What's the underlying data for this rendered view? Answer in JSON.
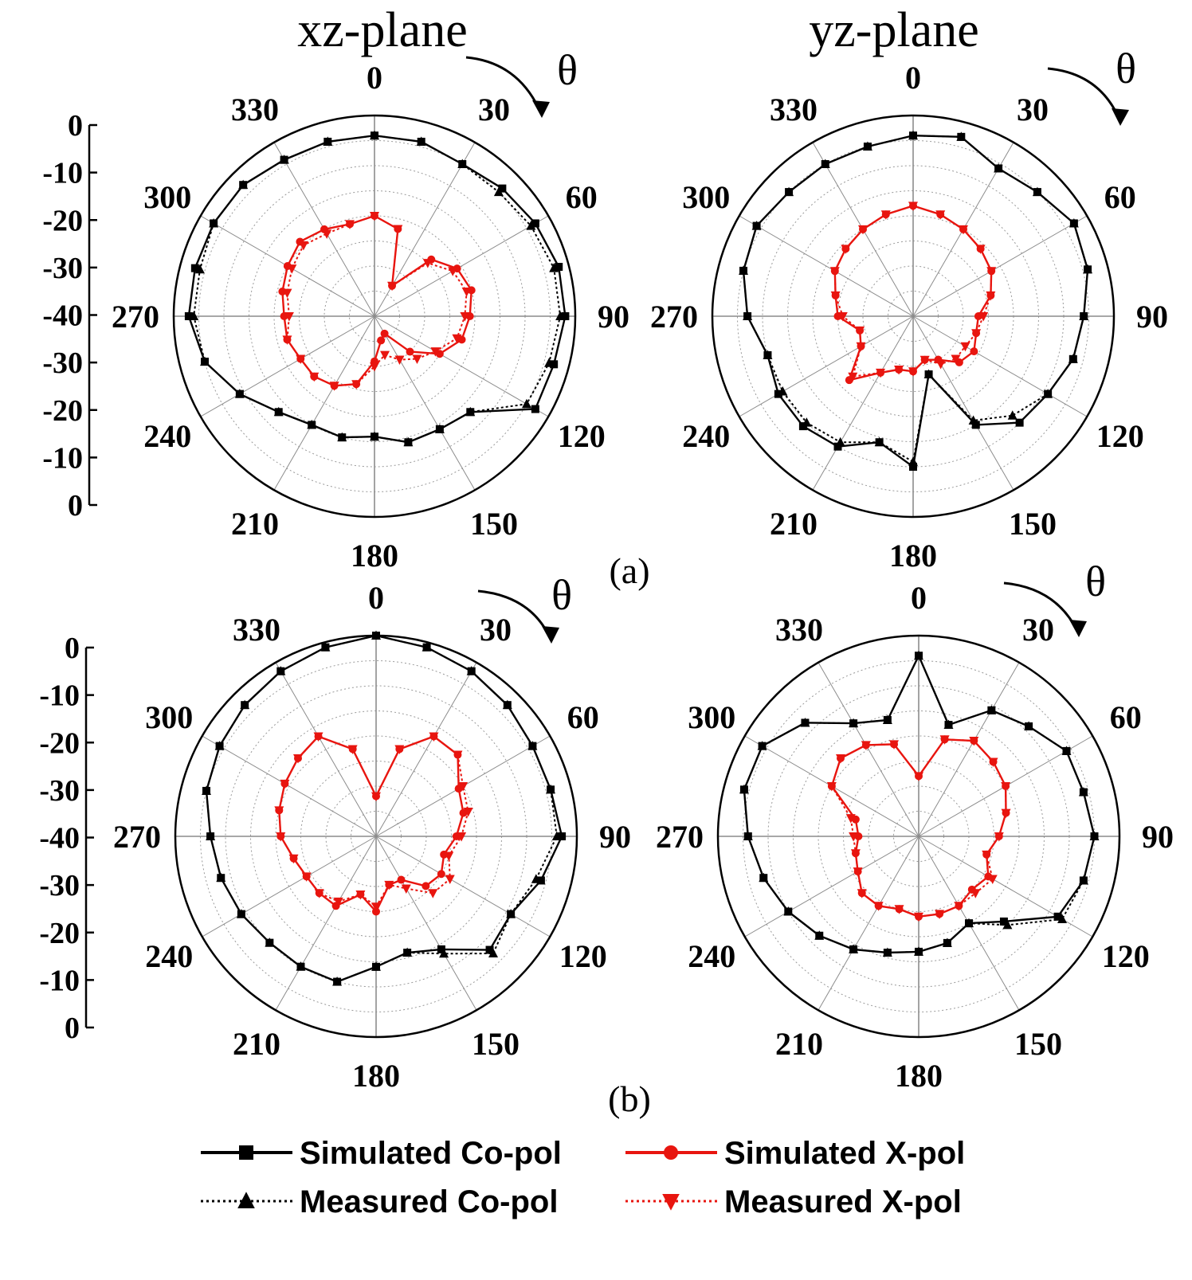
{
  "figure": {
    "labels": {
      "xz_plane": "xz-plane",
      "yz_plane": "yz-plane",
      "theta": "θ",
      "a": "(a)",
      "b": "(b)"
    },
    "legend": [
      {
        "label": "Simulated Co-pol",
        "color": "#000000",
        "dash": "solid",
        "marker": "square"
      },
      {
        "label": "Simulated X-pol",
        "color": "#e8150f",
        "dash": "solid",
        "marker": "circle"
      },
      {
        "label": "Measured Co-pol",
        "color": "#000000",
        "dash": "dotted",
        "marker": "triangle-up"
      },
      {
        "label": "Measured X-pol",
        "color": "#e8150f",
        "dash": "dotted",
        "marker": "triangle-down"
      }
    ]
  },
  "chart_data": [
    {
      "type": "polar-line",
      "row": "a",
      "plane_label": "xz-plane",
      "angle_ticks": [
        "0",
        "30",
        "60",
        "90",
        "120",
        "150",
        "180",
        "210",
        "240",
        "270",
        "300",
        "330"
      ],
      "radial_ticks": [
        "0",
        "-10",
        "-20",
        "-30",
        "-40",
        "-30",
        "-20",
        "-10",
        "0"
      ],
      "rlim": [
        -40,
        0
      ],
      "grid": true,
      "series": [
        {
          "name": "Simulated Co-pol",
          "theta": [
            0,
            15,
            30,
            45,
            60,
            75,
            90,
            105,
            120,
            135,
            150,
            165,
            180,
            195,
            210,
            225,
            240,
            255,
            270,
            285,
            300,
            315,
            330,
            345
          ],
          "r": [
            -4,
            -4,
            -5,
            -4,
            -3,
            -2,
            -2,
            -3,
            -3,
            -13,
            -14,
            -14,
            -16,
            -15,
            -15,
            -13,
            -9,
            -5,
            -3,
            -3,
            -3,
            -3,
            -4,
            -4
          ]
        },
        {
          "name": "Measured Co-pol",
          "theta": [
            0,
            15,
            30,
            45,
            60,
            75,
            90,
            105,
            120,
            135,
            150,
            165,
            180,
            195,
            210,
            225,
            240,
            255,
            270,
            285,
            300,
            315,
            330,
            345
          ],
          "r": [
            -4,
            -4,
            -5,
            -5,
            -4,
            -3,
            -3,
            -4,
            -5,
            -13,
            -14,
            -14,
            -16,
            -15,
            -15,
            -13,
            -9,
            -5,
            -4,
            -4,
            -3,
            -3,
            -4,
            -4
          ]
        },
        {
          "name": "Simulated X-pol",
          "theta": [
            0,
            15,
            30,
            45,
            60,
            75,
            90,
            105,
            120,
            135,
            150,
            165,
            180,
            195,
            210,
            225,
            240,
            255,
            270,
            285,
            300,
            315,
            330,
            345
          ],
          "r": [
            -20,
            -22,
            -33,
            -24,
            -21,
            -20,
            -21,
            -22,
            -25,
            -30,
            -36,
            -35,
            -31,
            -26,
            -24,
            -23,
            -23,
            -22,
            -22,
            -21,
            -20,
            -19,
            -20,
            -21
          ]
        },
        {
          "name": "Measured X-pol",
          "theta": [
            0,
            15,
            30,
            45,
            60,
            75,
            90,
            105,
            120,
            135,
            150,
            165,
            180,
            195,
            210,
            225,
            240,
            255,
            270,
            285,
            300,
            315,
            330,
            345
          ],
          "r": [
            -20,
            -22,
            -33,
            -25,
            -22,
            -21,
            -22,
            -23,
            -26,
            -28,
            -30,
            -32,
            -30,
            -26,
            -24,
            -23,
            -23,
            -22,
            -23,
            -22,
            -21,
            -20,
            -21,
            -21
          ]
        }
      ]
    },
    {
      "type": "polar-line",
      "row": "a",
      "plane_label": "yz-plane",
      "angle_ticks": [
        "0",
        "30",
        "60",
        "90",
        "120",
        "150",
        "180",
        "210",
        "240",
        "270",
        "300",
        "330"
      ],
      "rlim": [
        -40,
        0
      ],
      "grid": true,
      "series": [
        {
          "name": "Simulated Co-pol",
          "theta": [
            0,
            15,
            30,
            45,
            60,
            75,
            90,
            105,
            120,
            135,
            150,
            165,
            180,
            195,
            210,
            225,
            240,
            255,
            270,
            285,
            300,
            315,
            330,
            345
          ],
          "r": [
            -4,
            -3,
            -6,
            -5,
            -3,
            -4,
            -6,
            -7,
            -9,
            -10,
            -15,
            -28,
            -10,
            -14,
            -10,
            -9,
            -9,
            -10,
            -7,
            -5,
            -4,
            -5,
            -5,
            -5
          ]
        },
        {
          "name": "Measured Co-pol",
          "theta": [
            0,
            15,
            30,
            45,
            60,
            75,
            90,
            105,
            120,
            135,
            150,
            165,
            180,
            195,
            210,
            225,
            240,
            255,
            270,
            285,
            300,
            315,
            330,
            345
          ],
          "r": [
            -4,
            -3,
            -6,
            -5,
            -3,
            -4,
            -6,
            -7,
            -9,
            -12,
            -16,
            -28,
            -11,
            -14,
            -11,
            -10,
            -10,
            -10,
            -7,
            -5,
            -4,
            -5,
            -5,
            -5
          ]
        },
        {
          "name": "Simulated X-pol",
          "theta": [
            0,
            15,
            30,
            45,
            60,
            75,
            90,
            105,
            120,
            135,
            150,
            165,
            180,
            195,
            210,
            225,
            240,
            255,
            270,
            285,
            300,
            315,
            330,
            345
          ],
          "r": [
            -18,
            -19,
            -20,
            -21,
            -22,
            -24,
            -27,
            -27,
            -26,
            -27,
            -30,
            -31,
            -29,
            -29,
            -27,
            -22,
            -28,
            -29,
            -25,
            -24,
            -22,
            -21,
            -20,
            -19
          ]
        },
        {
          "name": "Measured X-pol",
          "theta": [
            0,
            15,
            30,
            45,
            60,
            75,
            90,
            105,
            120,
            135,
            150,
            165,
            180,
            195,
            210,
            225,
            240,
            255,
            270,
            285,
            300,
            315,
            330,
            345
          ],
          "r": [
            -18,
            -19,
            -20,
            -21,
            -22,
            -24,
            -26,
            -27,
            -28,
            -28,
            -29,
            -31,
            -29,
            -29,
            -27,
            -23,
            -28,
            -29,
            -26,
            -24,
            -22,
            -21,
            -20,
            -19
          ]
        }
      ]
    },
    {
      "type": "polar-line",
      "row": "b",
      "plane_label": "",
      "angle_ticks": [
        "0",
        "30",
        "60",
        "90",
        "120",
        "150",
        "180",
        "210",
        "240",
        "270",
        "300",
        "330"
      ],
      "radial_ticks": [
        "0",
        "-10",
        "-20",
        "-30",
        "-40",
        "-30",
        "-20",
        "-10",
        "0"
      ],
      "rlim": [
        -40,
        0
      ],
      "grid": true,
      "series": [
        {
          "name": "Simulated Co-pol",
          "theta": [
            0,
            15,
            30,
            45,
            60,
            75,
            90,
            105,
            120,
            135,
            150,
            165,
            180,
            195,
            210,
            225,
            240,
            255,
            270,
            285,
            300,
            315,
            330,
            345
          ],
          "r": [
            0,
            -1,
            -2,
            -3,
            -4,
            -4,
            -3,
            -6,
            -9,
            -8,
            -14,
            -16,
            -14,
            -10,
            -10,
            -10,
            -9,
            -8,
            -7,
            -5,
            -4,
            -3,
            -2,
            -1
          ]
        },
        {
          "name": "Measured Co-pol",
          "theta": [
            0,
            15,
            30,
            45,
            60,
            75,
            90,
            105,
            120,
            135,
            150,
            165,
            180,
            195,
            210,
            225,
            240,
            255,
            270,
            285,
            300,
            315,
            330,
            345
          ],
          "r": [
            0,
            -1,
            -2,
            -3,
            -4,
            -4,
            -4,
            -7,
            -9,
            -7,
            -13,
            -16,
            -14,
            -10,
            -10,
            -10,
            -9,
            -8,
            -7,
            -5,
            -4,
            -3,
            -2,
            -1
          ]
        },
        {
          "name": "Simulated X-pol",
          "theta": [
            0,
            15,
            30,
            45,
            60,
            75,
            90,
            105,
            120,
            135,
            150,
            165,
            180,
            195,
            210,
            225,
            240,
            255,
            270,
            285,
            300,
            315,
            330,
            345
          ],
          "r": [
            -32,
            -22,
            -17,
            -17,
            -21,
            -22,
            -24,
            -26,
            -25,
            -26,
            -30,
            -30,
            -25,
            -28,
            -24,
            -24,
            -24,
            -23,
            -21,
            -20,
            -19,
            -18,
            -17,
            -22
          ]
        },
        {
          "name": "Measured X-pol",
          "theta": [
            0,
            15,
            30,
            45,
            60,
            75,
            90,
            105,
            120,
            135,
            150,
            165,
            180,
            195,
            210,
            225,
            240,
            255,
            270,
            285,
            300,
            315,
            330,
            345
          ],
          "r": [
            -32,
            -22,
            -17,
            -17,
            -20,
            -21,
            -23,
            -25,
            -23,
            -24,
            -28,
            -30,
            -26,
            -28,
            -25,
            -24,
            -24,
            -23,
            -21,
            -20,
            -19,
            -18,
            -17,
            -22
          ]
        }
      ]
    },
    {
      "type": "polar-line",
      "row": "b",
      "plane_label": "",
      "angle_ticks": [
        "0",
        "30",
        "60",
        "90",
        "120",
        "150",
        "180",
        "210",
        "240",
        "270",
        "300",
        "330"
      ],
      "rlim": [
        -40,
        0
      ],
      "grid": true,
      "series": [
        {
          "name": "Simulated Co-pol",
          "theta": [
            0,
            15,
            30,
            45,
            60,
            75,
            90,
            105,
            120,
            135,
            150,
            165,
            180,
            195,
            210,
            225,
            240,
            255,
            270,
            285,
            300,
            315,
            330,
            345
          ],
          "r": [
            -4,
            -17,
            -11,
            -9,
            -6,
            -6,
            -5,
            -6,
            -8,
            -16,
            -20,
            -18,
            -17,
            -16,
            -14,
            -12,
            -10,
            -8,
            -6,
            -4,
            -4,
            -8,
            -14,
            -16
          ]
        },
        {
          "name": "Measured Co-pol",
          "theta": [
            0,
            15,
            30,
            45,
            60,
            75,
            90,
            105,
            120,
            135,
            150,
            165,
            180,
            195,
            210,
            225,
            240,
            255,
            270,
            285,
            300,
            315,
            330,
            345
          ],
          "r": [
            -4,
            -17,
            -11,
            -9,
            -6,
            -6,
            -5,
            -6,
            -7,
            -15,
            -20,
            -18,
            -17,
            -16,
            -14,
            -12,
            -10,
            -8,
            -6,
            -4,
            -4,
            -8,
            -14,
            -16
          ]
        },
        {
          "name": "Simulated X-pol",
          "theta": [
            0,
            15,
            30,
            45,
            60,
            75,
            90,
            105,
            120,
            135,
            150,
            165,
            180,
            195,
            210,
            225,
            240,
            255,
            270,
            285,
            300,
            315,
            330,
            345
          ],
          "r": [
            -28,
            -20,
            -18,
            -19,
            -20,
            -22,
            -24,
            -26,
            -24,
            -25,
            -24,
            -24,
            -24,
            -25,
            -24,
            -24,
            -26,
            -27,
            -28,
            -27,
            -20,
            -18,
            -19,
            -21
          ]
        },
        {
          "name": "Measured X-pol",
          "theta": [
            0,
            15,
            30,
            45,
            60,
            75,
            90,
            105,
            120,
            135,
            150,
            165,
            180,
            195,
            210,
            225,
            240,
            255,
            270,
            285,
            300,
            315,
            330,
            345
          ],
          "r": [
            -28,
            -20,
            -18,
            -19,
            -20,
            -22,
            -24,
            -26,
            -23,
            -24,
            -24,
            -24,
            -24,
            -25,
            -24,
            -24,
            -26,
            -27,
            -27,
            -26,
            -20,
            -18,
            -19,
            -21
          ]
        }
      ]
    }
  ]
}
